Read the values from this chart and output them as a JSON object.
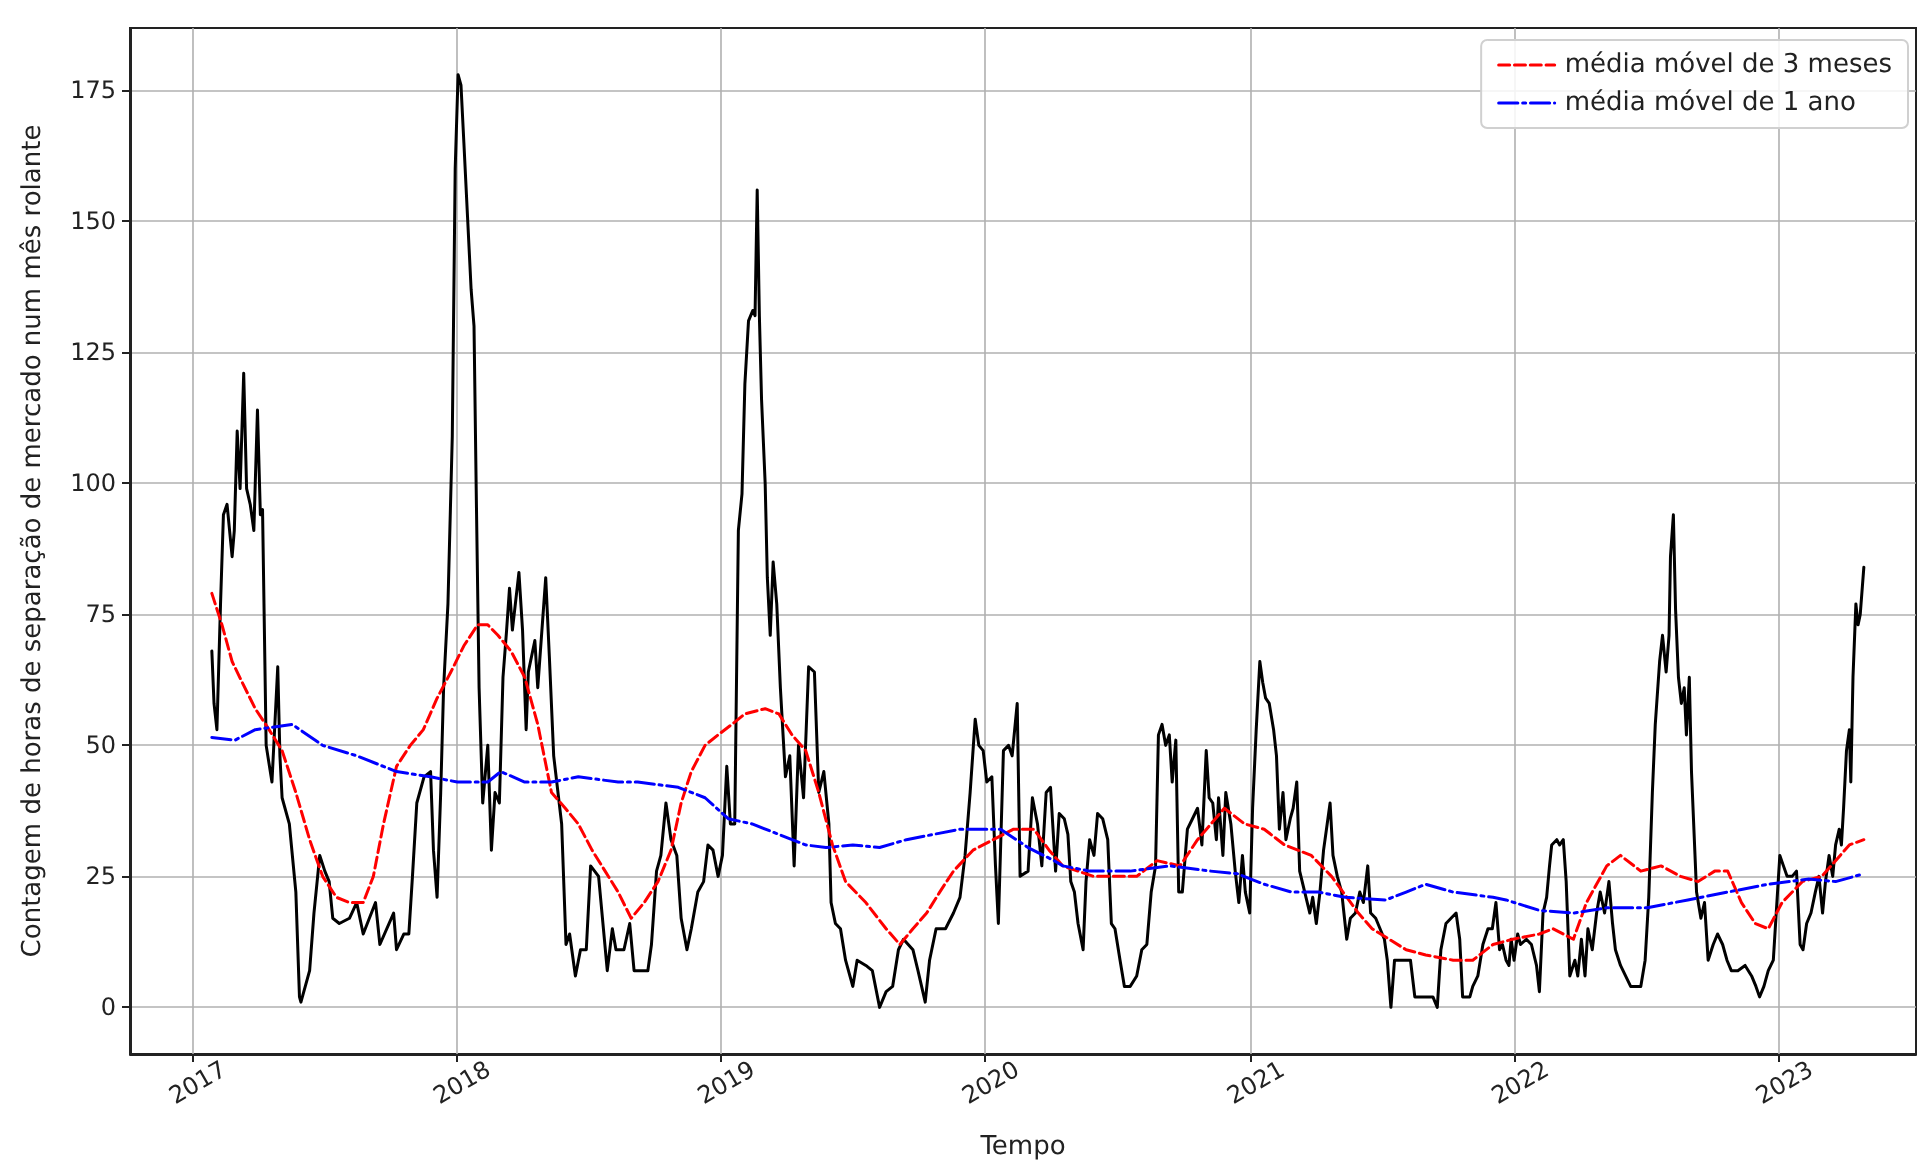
{
  "chart_data": {
    "type": "line",
    "xlabel": "Tempo",
    "ylabel": "Contagem de horas de separação de mercado num mês rolante",
    "xlim": [
      "2016-10-08",
      "2023-07-10"
    ],
    "xticks": [
      "2017",
      "2018",
      "2019",
      "2020",
      "2021",
      "2022",
      "2023"
    ],
    "ylim": [
      -8.9,
      186.9
    ],
    "yticks": [
      0,
      25,
      50,
      75,
      100,
      125,
      150,
      175
    ],
    "grid": true,
    "legend": "top right",
    "marker": "none",
    "series": [
      {
        "color": "#000000",
        "line_style": "solid",
        "x": [
          "2017-01-29",
          "2017-02-01",
          "2017-02-05",
          "2017-02-10",
          "2017-02-14",
          "2017-02-19",
          "2017-02-26",
          "2017-03-01",
          "2017-03-05",
          "2017-03-09",
          "2017-03-14",
          "2017-03-18",
          "2017-03-23",
          "2017-03-28",
          "2017-04-02",
          "2017-04-06",
          "2017-04-09",
          "2017-04-14",
          "2017-04-22",
          "2017-04-30",
          "2017-05-03",
          "2017-05-06",
          "2017-05-16",
          "2017-05-25",
          "2017-05-30",
          "2017-06-01",
          "2017-06-13",
          "2017-06-19",
          "2017-06-27",
          "2017-07-04",
          "2017-07-10",
          "2017-07-15",
          "2017-07-24",
          "2017-08-07",
          "2017-08-17",
          "2017-08-26",
          "2017-09-12",
          "2017-09-18",
          "2017-10-07",
          "2017-10-11",
          "2017-10-21",
          "2017-10-28",
          "2017-11-02",
          "2017-11-08",
          "2017-11-18",
          "2017-11-27",
          "2017-12-01",
          "2017-12-06",
          "2017-12-11",
          "2017-12-15",
          "2017-12-21",
          "2017-12-27",
          "2017-12-31",
          "2018-01-04",
          "2018-01-08",
          "2018-01-12",
          "2018-01-17",
          "2018-01-22",
          "2018-01-26",
          "2018-01-29",
          "2018-02-02",
          "2018-02-07",
          "2018-02-14",
          "2018-02-19",
          "2018-02-24",
          "2018-03-02",
          "2018-03-07",
          "2018-03-12",
          "2018-03-16",
          "2018-03-20",
          "2018-03-29",
          "2018-04-03",
          "2018-04-08",
          "2018-04-11",
          "2018-04-20",
          "2018-04-24",
          "2018-05-05",
          "2018-05-10",
          "2018-05-16",
          "2018-05-27",
          "2018-06-02",
          "2018-06-07",
          "2018-06-15",
          "2018-06-22",
          "2018-06-30",
          "2018-07-06",
          "2018-07-17",
          "2018-07-29",
          "2018-08-05",
          "2018-08-10",
          "2018-08-21",
          "2018-08-29",
          "2018-09-04",
          "2018-09-23",
          "2018-09-28",
          "2018-10-05",
          "2018-10-11",
          "2018-10-18",
          "2018-10-25",
          "2018-11-02",
          "2018-11-08",
          "2018-11-16",
          "2018-11-22",
          "2018-12-01",
          "2018-12-09",
          "2018-12-15",
          "2018-12-22",
          "2018-12-29",
          "2019-01-04",
          "2019-01-10",
          "2019-01-15",
          "2019-01-21",
          "2019-01-26",
          "2019-01-31",
          "2019-02-04",
          "2019-02-09",
          "2019-02-15",
          "2019-02-18",
          "2019-02-21",
          "2019-02-24",
          "2019-02-27",
          "2019-03-04",
          "2019-03-07",
          "2019-03-11",
          "2019-03-15",
          "2019-03-20",
          "2019-03-25",
          "2019-04-01",
          "2019-04-07",
          "2019-04-13",
          "2019-04-19",
          "2019-04-26",
          "2019-05-03",
          "2019-05-11",
          "2019-05-17",
          "2019-05-24",
          "2019-05-31",
          "2019-06-03",
          "2019-06-09",
          "2019-06-16",
          "2019-06-23",
          "2019-07-03",
          "2019-07-09",
          "2019-07-21",
          "2019-07-30",
          "2019-08-09",
          "2019-08-18",
          "2019-08-27",
          "2019-09-04",
          "2019-09-11",
          "2019-09-24",
          "2019-10-01",
          "2019-10-11",
          "2019-10-17",
          "2019-10-26",
          "2019-11-08",
          "2019-11-19",
          "2019-11-28",
          "2019-12-05",
          "2019-12-12",
          "2019-12-19",
          "2019-12-24",
          "2019-12-30",
          "2020-01-04",
          "2020-01-11",
          "2020-01-16",
          "2020-01-20",
          "2020-01-27",
          "2020-02-03",
          "2020-02-08",
          "2020-02-15",
          "2020-02-19",
          "2020-03-01",
          "2020-03-07",
          "2020-03-14",
          "2020-03-20",
          "2020-03-26",
          "2020-04-01",
          "2020-04-04",
          "2020-04-08",
          "2020-04-13",
          "2020-04-20",
          "2020-04-25",
          "2020-04-29",
          "2020-05-04",
          "2020-05-09",
          "2020-05-16",
          "2020-05-20",
          "2020-05-25",
          "2020-05-31",
          "2020-06-05",
          "2020-06-12",
          "2020-06-19",
          "2020-06-24",
          "2020-06-29",
          "2020-07-06",
          "2020-07-12",
          "2020-07-20",
          "2020-07-29",
          "2020-08-05",
          "2020-08-12",
          "2020-08-18",
          "2020-08-24",
          "2020-08-28",
          "2020-09-02",
          "2020-09-07",
          "2020-09-12",
          "2020-09-16",
          "2020-09-21",
          "2020-09-25",
          "2020-09-30",
          "2020-10-07",
          "2020-10-14",
          "2020-10-21",
          "2020-10-27",
          "2020-11-02",
          "2020-11-06",
          "2020-11-11",
          "2020-11-16",
          "2020-11-19",
          "2020-11-25",
          "2020-11-29",
          "2020-12-06",
          "2020-12-12",
          "2020-12-17",
          "2020-12-22",
          "2020-12-26",
          "2021-01-01",
          "2021-01-05",
          "2021-01-10",
          "2021-01-15",
          "2021-01-19",
          "2021-01-23",
          "2021-01-28",
          "2021-02-03",
          "2021-02-07",
          "2021-02-11",
          "2021-02-16",
          "2021-02-20",
          "2021-02-26",
          "2021-03-02",
          "2021-03-07",
          "2021-03-11",
          "2021-03-18",
          "2021-03-25",
          "2021-03-29",
          "2021-04-03",
          "2021-04-08",
          "2021-04-13",
          "2021-04-18",
          "2021-04-22",
          "2021-04-26",
          "2021-05-02",
          "2021-05-08",
          "2021-05-15",
          "2021-05-20",
          "2021-05-27",
          "2021-06-02",
          "2021-06-07",
          "2021-06-13",
          "2021-06-17",
          "2021-06-24",
          "2021-06-30",
          "2021-07-06",
          "2021-07-10",
          "2021-07-15",
          "2021-07-20",
          "2021-07-31",
          "2021-08-11",
          "2021-08-17",
          "2021-08-28",
          "2021-09-11",
          "2021-09-17",
          "2021-09-22",
          "2021-09-29",
          "2021-10-06",
          "2021-10-13",
          "2021-10-18",
          "2021-10-22",
          "2021-11-01",
          "2021-11-05",
          "2021-11-12",
          "2021-11-19",
          "2021-11-26",
          "2021-12-02",
          "2021-12-07",
          "2021-12-12",
          "2021-12-16",
          "2021-12-21",
          "2021-12-25",
          "2021-12-28",
          "2022-01-01",
          "2022-01-06",
          "2022-01-10",
          "2022-01-18",
          "2022-01-25",
          "2022-02-01",
          "2022-02-05",
          "2022-02-10",
          "2022-02-15",
          "2022-02-19",
          "2022-02-22",
          "2022-03-01",
          "2022-03-05",
          "2022-03-10",
          "2022-03-14",
          "2022-03-19",
          "2022-03-26",
          "2022-03-30",
          "2022-04-04",
          "2022-04-09",
          "2022-04-13",
          "2022-04-19",
          "2022-04-25",
          "2022-04-30",
          "2022-05-06",
          "2022-05-12",
          "2022-05-17",
          "2022-05-21",
          "2022-05-28",
          "2022-06-04",
          "2022-06-11",
          "2022-06-17",
          "2022-06-25",
          "2022-07-01",
          "2022-07-06",
          "2022-07-11",
          "2022-07-15",
          "2022-07-21",
          "2022-07-25",
          "2022-07-30",
          "2022-08-03",
          "2022-08-05",
          "2022-08-09",
          "2022-08-12",
          "2022-08-16",
          "2022-08-20",
          "2022-08-24",
          "2022-08-27",
          "2022-08-31",
          "2022-09-03",
          "2022-09-10",
          "2022-09-16",
          "2022-09-21",
          "2022-09-26",
          "2022-10-03",
          "2022-10-09",
          "2022-10-16",
          "2022-10-22",
          "2022-10-28",
          "2022-11-06",
          "2022-11-16",
          "2022-11-25",
          "2022-12-01",
          "2022-12-06",
          "2022-12-12",
          "2022-12-18",
          "2022-12-25",
          "2022-12-29",
          "2023-01-03",
          "2023-01-08",
          "2023-01-13",
          "2023-01-20",
          "2023-01-26",
          "2023-01-31",
          "2023-02-04",
          "2023-02-09",
          "2023-02-15",
          "2023-02-21",
          "2023-02-26",
          "2023-03-03",
          "2023-03-07",
          "2023-03-12",
          "2023-03-17",
          "2023-03-21",
          "2023-03-26",
          "2023-03-29",
          "2023-04-01",
          "2023-04-05",
          "2023-04-09",
          "2023-04-11",
          "2023-04-14",
          "2023-04-18",
          "2023-04-21",
          "2023-04-24",
          "2023-04-29"
        ],
        "values": [
          68,
          58,
          53,
          77,
          94,
          96,
          86,
          91,
          110,
          99,
          121,
          99,
          96,
          91,
          114,
          94,
          95,
          50,
          43,
          65,
          48,
          40,
          35,
          22,
          2,
          1,
          7,
          18,
          29,
          26,
          24,
          17,
          16,
          17,
          20,
          14,
          20,
          12,
          18,
          11,
          14,
          14,
          25,
          39,
          44,
          45,
          30,
          21,
          41,
          61,
          77,
          109,
          160,
          178,
          176,
          165,
          151,
          137,
          130,
          99,
          61,
          39,
          50,
          30,
          41,
          39,
          63,
          72,
          80,
          72,
          83,
          72,
          53,
          64,
          70,
          61,
          82,
          67,
          48,
          35,
          12,
          14,
          6,
          11,
          11,
          27,
          25,
          7,
          15,
          11,
          11,
          16,
          7,
          7,
          12,
          26,
          29,
          39,
          32,
          29,
          17,
          11,
          15,
          22,
          24,
          31,
          30,
          25,
          29,
          46,
          35,
          35,
          91,
          98,
          119,
          131,
          133,
          132,
          156,
          132,
          116,
          100,
          82,
          71,
          85,
          77,
          61,
          44,
          48,
          27,
          50,
          40,
          65,
          64,
          41,
          45,
          35,
          20,
          16,
          15,
          9,
          4,
          9,
          8,
          7,
          0,
          3,
          4,
          11,
          13,
          11,
          7,
          1,
          9,
          15,
          15,
          18,
          21,
          29,
          41,
          55,
          50,
          49,
          43,
          44,
          27,
          16,
          49,
          50,
          48,
          58,
          25,
          26,
          40,
          35,
          27,
          41,
          42,
          35,
          26,
          37,
          36,
          33,
          24,
          22,
          16,
          11,
          24,
          32,
          29,
          37,
          36,
          32,
          16,
          15,
          9,
          4,
          4,
          6,
          11,
          12,
          22,
          27,
          52,
          54,
          50,
          52,
          43,
          51,
          22,
          22,
          34,
          36,
          38,
          31,
          49,
          40,
          39,
          32,
          40,
          29,
          41,
          35,
          26,
          20,
          29,
          22,
          18,
          38,
          53,
          66,
          62,
          59,
          58,
          53,
          48,
          34,
          41,
          32,
          36,
          38,
          43,
          26,
          22,
          18,
          21,
          16,
          22,
          30,
          35,
          39,
          29,
          25,
          22,
          13,
          17,
          18,
          22,
          20,
          27,
          18,
          17,
          15,
          13,
          9,
          0,
          9,
          9,
          9,
          2,
          2,
          2,
          0,
          11,
          16,
          17,
          18,
          13,
          2,
          2,
          4,
          6,
          12,
          15,
          15,
          20,
          11,
          12,
          9,
          8,
          13,
          9,
          14,
          12,
          13,
          12,
          8,
          3,
          18,
          21,
          27,
          31,
          32,
          31,
          32,
          24,
          6,
          9,
          6,
          13,
          6,
          15,
          11,
          18,
          22,
          18,
          24,
          16,
          11,
          8,
          6,
          4,
          4,
          4,
          9,
          21,
          41,
          54,
          66,
          71,
          64,
          71,
          86,
          94,
          76,
          63,
          58,
          61,
          52,
          63,
          45,
          22,
          17,
          20,
          9,
          12,
          14,
          12,
          9,
          7,
          7,
          8,
          6,
          4,
          2,
          4,
          7,
          9,
          18,
          29,
          27,
          25,
          25,
          26,
          12,
          11,
          16,
          18,
          22,
          25,
          18,
          24,
          29,
          25,
          31,
          34,
          31,
          38,
          49,
          53,
          43,
          63,
          77,
          73,
          75,
          84
        ]
      },
      {
        "name": "média móvel de 3 meses",
        "color": "#ff0000",
        "line_style": "dashed",
        "x": [
          "2017-01-29",
          "2017-02-12",
          "2017-02-26",
          "2017-03-12",
          "2017-03-30",
          "2017-04-18",
          "2017-05-06",
          "2017-05-25",
          "2017-06-13",
          "2017-07-01",
          "2017-07-20",
          "2017-08-07",
          "2017-08-26",
          "2017-09-09",
          "2017-09-23",
          "2017-10-11",
          "2017-10-30",
          "2017-11-17",
          "2017-12-06",
          "2017-12-25",
          "2018-01-12",
          "2018-01-31",
          "2018-02-14",
          "2018-02-28",
          "2018-03-18",
          "2018-04-06",
          "2018-04-24",
          "2018-05-13",
          "2018-06-01",
          "2018-06-19",
          "2018-07-08",
          "2018-07-26",
          "2018-08-13",
          "2018-08-31",
          "2018-09-18",
          "2018-10-07",
          "2018-10-25",
          "2018-11-08",
          "2018-11-22",
          "2018-12-11",
          "2018-12-29",
          "2019-01-17",
          "2019-02-04",
          "2019-03-04",
          "2019-03-23",
          "2019-04-10",
          "2019-04-29",
          "2019-05-17",
          "2019-06-05",
          "2019-06-23",
          "2019-07-21",
          "2019-08-18",
          "2019-09-06",
          "2019-09-24",
          "2019-10-13",
          "2019-10-31",
          "2019-11-19",
          "2019-12-16",
          "2020-01-13",
          "2020-02-10",
          "2020-03-09",
          "2020-03-30",
          "2020-04-18",
          "2020-05-30",
          "2020-07-29",
          "2020-08-26",
          "2020-09-27",
          "2020-10-21",
          "2020-11-27",
          "2020-12-25",
          "2021-01-21",
          "2021-02-18",
          "2021-03-27",
          "2021-04-24",
          "2021-05-31",
          "2021-06-19",
          "2021-08-05",
          "2021-09-01",
          "2021-10-09",
          "2021-11-05",
          "2021-12-03",
          "2021-12-30",
          "2022-02-05",
          "2022-02-24",
          "2022-03-24",
          "2022-04-11",
          "2022-05-09",
          "2022-05-28",
          "2022-06-25",
          "2022-07-23",
          "2022-08-19",
          "2022-09-12",
          "2022-10-05",
          "2022-10-23",
          "2022-11-11",
          "2022-11-30",
          "2022-12-18",
          "2023-01-06",
          "2023-02-03",
          "2023-03-02",
          "2023-03-21",
          "2023-04-09",
          "2023-04-29"
        ],
        "values": [
          79,
          73,
          66,
          62,
          57,
          53,
          49,
          41,
          32,
          25,
          21,
          20,
          20,
          25,
          35,
          46,
          50,
          53,
          59,
          64,
          69,
          73,
          73,
          71,
          68,
          63,
          54,
          41,
          38,
          35,
          30,
          26,
          22,
          17,
          20,
          24,
          30,
          39,
          45,
          50,
          52,
          54,
          56,
          57,
          56,
          52,
          49,
          41,
          31,
          24,
          20,
          15,
          12,
          15,
          18,
          22,
          26,
          30,
          32,
          34,
          34,
          30,
          27,
          25,
          25,
          28,
          27,
          32,
          38,
          35,
          34,
          31,
          29,
          25,
          18,
          15,
          11,
          10,
          9,
          9,
          12,
          13,
          14,
          15,
          13,
          20,
          27,
          29,
          26,
          27,
          25,
          24,
          26,
          26,
          20,
          16,
          15,
          20,
          24,
          25,
          28,
          31,
          32
        ]
      },
      {
        "name": "média móvel de 1 ano",
        "color": "#0000ff",
        "line_style": "dashdot",
        "x": [
          "2017-01-29",
          "2017-03-02",
          "2017-03-30",
          "2017-05-20",
          "2017-07-01",
          "2017-08-17",
          "2017-10-11",
          "2017-11-27",
          "2018-01-03",
          "2018-02-14",
          "2018-03-04",
          "2018-04-06",
          "2018-05-13",
          "2018-06-19",
          "2018-08-13",
          "2018-09-09",
          "2018-11-04",
          "2018-12-11",
          "2019-01-12",
          "2019-02-14",
          "2019-03-23",
          "2019-04-29",
          "2019-05-27",
          "2019-07-03",
          "2019-08-09",
          "2019-09-15",
          "2019-10-22",
          "2019-11-28",
          "2020-01-23",
          "2020-03-01",
          "2020-04-06",
          "2020-04-18",
          "2020-05-25",
          "2020-07-20",
          "2020-09-13",
          "2020-11-08",
          "2020-12-15",
          "2021-01-21",
          "2021-02-28",
          "2021-04-06",
          "2021-05-13",
          "2021-07-08",
          "2021-08-05",
          "2021-09-01",
          "2021-10-09",
          "2021-12-03",
          "2021-12-21",
          "2022-02-05",
          "2022-03-24",
          "2022-05-09",
          "2022-07-04",
          "2022-08-29",
          "2022-10-23",
          "2022-12-18",
          "2023-02-12",
          "2023-03-21",
          "2023-04-29"
        ],
        "values": [
          51.5,
          51,
          53,
          54,
          50,
          48,
          45,
          44,
          43,
          43,
          45,
          43,
          43,
          44,
          43,
          43,
          42,
          40,
          36,
          35,
          33,
          31,
          30.5,
          31,
          30.5,
          32,
          33,
          34,
          34,
          30.5,
          28,
          27,
          26,
          26,
          27,
          26,
          25.5,
          23.5,
          22,
          22,
          21,
          20.5,
          22,
          23.5,
          22,
          21,
          20.5,
          18.5,
          18,
          19,
          19,
          20.5,
          22,
          23.5,
          24.5,
          24,
          25.5
        ]
      }
    ]
  }
}
